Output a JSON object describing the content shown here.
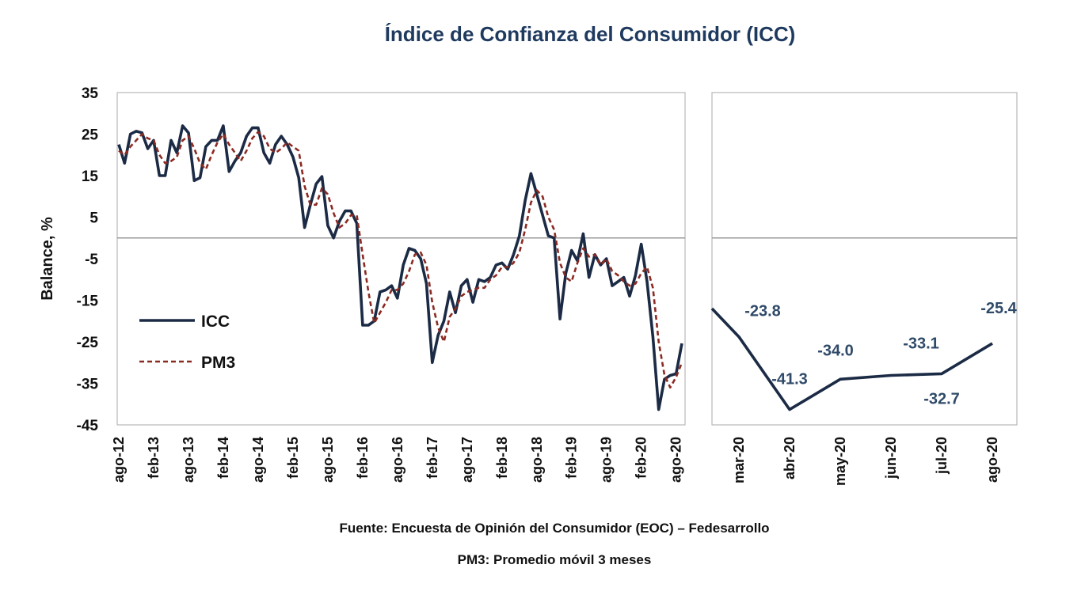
{
  "title": "Índice de Confianza del Consumidor (ICC)",
  "footer": {
    "source": "Fuente: Encuesta de Opinión del Consumidor (EOC) – Fedesarrollo",
    "note": "PM3: Promedio móvil 3 meses"
  },
  "colors": {
    "icc": "#1c2b45",
    "pm3": "#8b2a22",
    "frame": "#b8b8b8",
    "zero_line": "#9a9a9a",
    "label": "#2f4a68"
  },
  "chart_data": [
    {
      "type": "line",
      "ylabel": "Balance, %",
      "ylim": [
        -45,
        35
      ],
      "yticks": [
        35,
        25,
        15,
        5,
        -5,
        -15,
        -25,
        -35,
        -45
      ],
      "x_tick_labels": [
        "ago-12",
        "feb-13",
        "ago-13",
        "feb-14",
        "ago-14",
        "feb-15",
        "ago-15",
        "feb-16",
        "ago-16",
        "feb-17",
        "ago-17",
        "feb-18",
        "ago-18",
        "feb-19",
        "ago-19",
        "feb-20",
        "ago-20"
      ],
      "legend": {
        "position": "left-middle",
        "entries": [
          "ICC",
          "PM3"
        ]
      },
      "series": [
        {
          "name": "ICC",
          "style": "solid",
          "values": [
            22.5,
            18.0,
            25.0,
            25.7,
            25.3,
            21.5,
            23.5,
            15.0,
            15.0,
            23.5,
            20.5,
            27.0,
            25.3,
            13.8,
            14.5,
            22.0,
            23.5,
            23.5,
            27.0,
            16.0,
            18.5,
            20.5,
            24.5,
            26.5,
            26.5,
            20.5,
            18.0,
            22.5,
            24.5,
            22.5,
            19.5,
            14.5,
            2.5,
            8.0,
            13.0,
            14.8,
            3.0,
            0.0,
            4.0,
            6.5,
            6.5,
            3.5,
            -21.0,
            -21.0,
            -20.0,
            -13.0,
            -12.5,
            -11.5,
            -14.5,
            -6.5,
            -2.5,
            -3.0,
            -5.0,
            -11.0,
            -30.0,
            -23.5,
            -20.0,
            -13.0,
            -18.0,
            -11.5,
            -10.0,
            -15.5,
            -10.0,
            -10.5,
            -9.5,
            -6.5,
            -6.0,
            -7.5,
            -4.0,
            0.5,
            9.0,
            15.5,
            10.5,
            5.5,
            0.5,
            0.0,
            -19.5,
            -8.5,
            -3.0,
            -5.5,
            1.0,
            -9.5,
            -4.0,
            -6.5,
            -5.0,
            -11.5,
            -10.5,
            -9.5,
            -14.0,
            -9.0,
            -1.5,
            -10.5,
            -23.8,
            -41.3,
            -34.0,
            -33.1,
            -32.7,
            -25.4
          ]
        },
        {
          "name": "PM3",
          "style": "dashed",
          "values": [
            21.0,
            20.0,
            22.0,
            23.5,
            25.0,
            24.0,
            23.5,
            20.0,
            18.0,
            18.5,
            19.5,
            23.5,
            24.5,
            21.5,
            18.0,
            16.5,
            20.0,
            23.0,
            25.0,
            22.5,
            20.5,
            18.5,
            21.0,
            24.0,
            25.5,
            24.5,
            21.5,
            20.5,
            21.5,
            23.0,
            22.0,
            21.0,
            12.5,
            8.0,
            8.0,
            12.0,
            10.5,
            6.0,
            2.5,
            3.5,
            5.5,
            5.5,
            -4.0,
            -13.0,
            -20.5,
            -18.0,
            -15.5,
            -12.5,
            -12.5,
            -11.0,
            -8.0,
            -4.0,
            -3.5,
            -6.5,
            -15.5,
            -21.5,
            -25.0,
            -19.0,
            -17.0,
            -14.0,
            -13.0,
            -12.5,
            -12.0,
            -12.0,
            -10.0,
            -9.0,
            -7.0,
            -7.0,
            -6.0,
            -3.5,
            2.0,
            8.5,
            11.5,
            10.0,
            5.0,
            2.0,
            -6.0,
            -9.5,
            -10.5,
            -6.0,
            -2.5,
            -4.5,
            -4.0,
            -6.5,
            -5.0,
            -8.0,
            -9.0,
            -10.5,
            -11.5,
            -11.0,
            -8.5,
            -7.0,
            -12.0,
            -25.0,
            -33.0,
            -36.0,
            -33.5,
            -30.0
          ]
        }
      ]
    },
    {
      "type": "line",
      "ylim": [
        -45,
        35
      ],
      "categories": [
        "mar-20",
        "abr-20",
        "may-20",
        "jun-20",
        "jul-20",
        "ago-20"
      ],
      "series": [
        {
          "name": "ICC",
          "values": [
            -23.8,
            -41.3,
            -34.0,
            -33.1,
            -32.7,
            -25.4
          ]
        }
      ],
      "data_labels": [
        "-23.8",
        "-41.3",
        "-34.0",
        "-33.1",
        "-32.7",
        "-25.4"
      ],
      "line_enters_from": -17.0
    }
  ]
}
